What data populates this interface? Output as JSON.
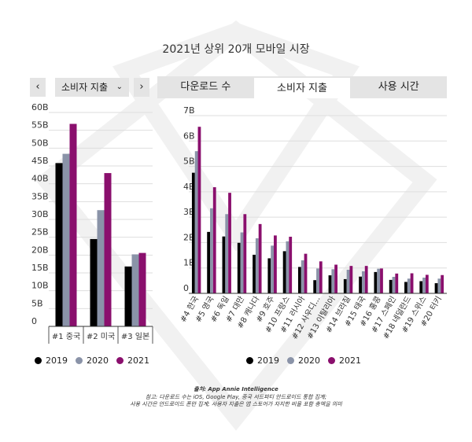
{
  "title": "2021년 상위 20개 모바일 시장",
  "left_panel": {
    "prev_label": "‹",
    "next_label": "›",
    "dropdown_label": "소비자 지출",
    "dropdown_icon": "chevron-down-icon"
  },
  "tabs": [
    {
      "label": "다운로드 수",
      "active": false
    },
    {
      "label": "소비자 지출",
      "active": true
    },
    {
      "label": "사용 시간",
      "active": false
    }
  ],
  "colors": {
    "2019": "#000000",
    "2020": "#8a93a8",
    "2021": "#8a0f6d"
  },
  "legend": [
    "2019",
    "2020",
    "2021"
  ],
  "chart_data": [
    {
      "type": "bar",
      "categories": [
        "#1 중국",
        "#2 미국",
        "#3 일본"
      ],
      "series": [
        {
          "name": "2019",
          "values": [
            45.8,
            24.5,
            16.8
          ]
        },
        {
          "name": "2020",
          "values": [
            48.4,
            32.6,
            20.2
          ]
        },
        {
          "name": "2021",
          "values": [
            56.8,
            43.0,
            20.6
          ]
        }
      ],
      "ylim": [
        0,
        60
      ],
      "yticks": [
        "0",
        "5B",
        "10B",
        "15B",
        "20B",
        "25B",
        "30B",
        "35B",
        "40B",
        "45B",
        "50B",
        "55B",
        "60B"
      ],
      "grid": true
    },
    {
      "type": "bar",
      "categories": [
        "#4 한국",
        "#5 영국",
        "#6 독일",
        "#7 대만",
        "#8 캐나다",
        "#9 호주",
        "#10 프랑스",
        "#11 러시아",
        "#12 사우디...",
        "#13 이탈리아",
        "#14 브라질",
        "#15 태국",
        "#16 홍콩",
        "#17 스페인",
        "#18 네덜란드",
        "#19 스위스",
        "#20 터키"
      ],
      "series": [
        {
          "name": "2019",
          "values": [
            4.75,
            2.42,
            2.24,
            1.99,
            1.52,
            1.38,
            1.66,
            1.04,
            0.52,
            0.71,
            0.56,
            0.66,
            0.84,
            0.53,
            0.45,
            0.48,
            0.4
          ]
        },
        {
          "name": "2020",
          "values": [
            5.6,
            3.35,
            3.12,
            2.4,
            2.17,
            1.88,
            2.05,
            1.3,
            0.98,
            0.95,
            0.93,
            0.87,
            0.97,
            0.65,
            0.58,
            0.62,
            0.58
          ]
        },
        {
          "name": "2021",
          "values": [
            6.56,
            4.18,
            3.96,
            3.12,
            2.73,
            2.28,
            2.23,
            1.56,
            1.26,
            1.13,
            1.08,
            1.08,
            0.98,
            0.78,
            0.79,
            0.73,
            0.72
          ]
        }
      ],
      "ylim": [
        0,
        7
      ],
      "yticks": [
        "0",
        "1B",
        "2B",
        "3B",
        "4B",
        "5B",
        "6B",
        "7B"
      ],
      "grid": true
    }
  ],
  "notes": {
    "source": "출처: App Annie Intelligence",
    "line1": "참고: 다운로드 수는 iOS, Google Play, 중국 서드파티 안드로이드 통합 집계;",
    "line2": "사용 시간은 안드로이드 폰만 집계; 사용자 지출은 앱 스토어가 차지한 비율 포함 총액을 의미"
  }
}
